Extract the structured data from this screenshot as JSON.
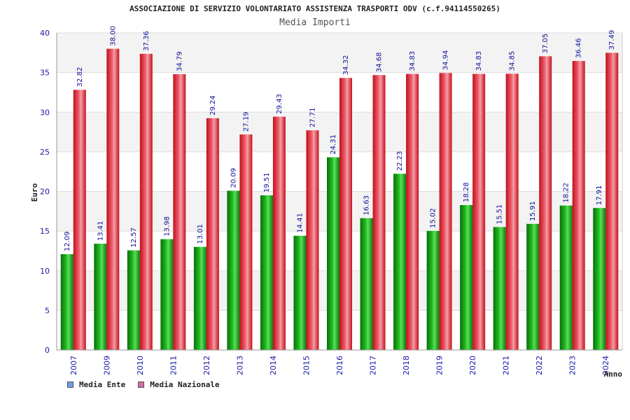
{
  "chart_data": {
    "type": "bar",
    "title": "ASSOCIAZIONE DI SERVIZIO VOLONTARIATO ASSISTENZA TRASPORTI ODV (c.f.94114550265)",
    "subtitle": "Media Importi",
    "xlabel": "Anno",
    "ylabel": "Euro",
    "ylim": [
      0,
      40
    ],
    "yticks": [
      0,
      5,
      10,
      15,
      20,
      25,
      30,
      35,
      40
    ],
    "grid": true,
    "legend_position": "bottom-left",
    "categories": [
      "2007",
      "2009",
      "2010",
      "2011",
      "2012",
      "2013",
      "2014",
      "2015",
      "2016",
      "2017",
      "2018",
      "2019",
      "2020",
      "2021",
      "2022",
      "2023",
      "2024"
    ],
    "series": [
      {
        "name": "Media Ente",
        "color": "#1a9e1a",
        "legend_color": "#6aa0e0",
        "values": [
          12.09,
          13.41,
          12.57,
          13.98,
          13.01,
          20.09,
          19.51,
          14.41,
          24.31,
          16.63,
          22.23,
          15.02,
          18.28,
          15.51,
          15.91,
          18.22,
          17.91
        ],
        "labels": [
          "12.09",
          "13.41",
          "12.57",
          "13.98",
          "13.01",
          "20.09",
          "19.51",
          "14.41",
          "24.31",
          "16.63",
          "22.23",
          "15.02",
          "18.28",
          "15.51",
          "15.91",
          "18.22",
          "17.91"
        ]
      },
      {
        "name": "Media Nazionale",
        "color": "#e0202a",
        "legend_color": "#d070a0",
        "values": [
          32.82,
          38.0,
          37.36,
          34.79,
          29.24,
          27.19,
          29.43,
          27.71,
          34.32,
          34.68,
          34.83,
          34.94,
          34.83,
          34.85,
          37.05,
          36.46,
          37.49
        ],
        "labels": [
          "32.82",
          "38.00",
          "37.36",
          "34.79",
          "29.24",
          "27.19",
          "29.43",
          "27.71",
          "34.32",
          "34.68",
          "34.83",
          "34.94",
          "34.83",
          "34.85",
          "37.05",
          "36.46",
          "37.49"
        ]
      }
    ]
  }
}
